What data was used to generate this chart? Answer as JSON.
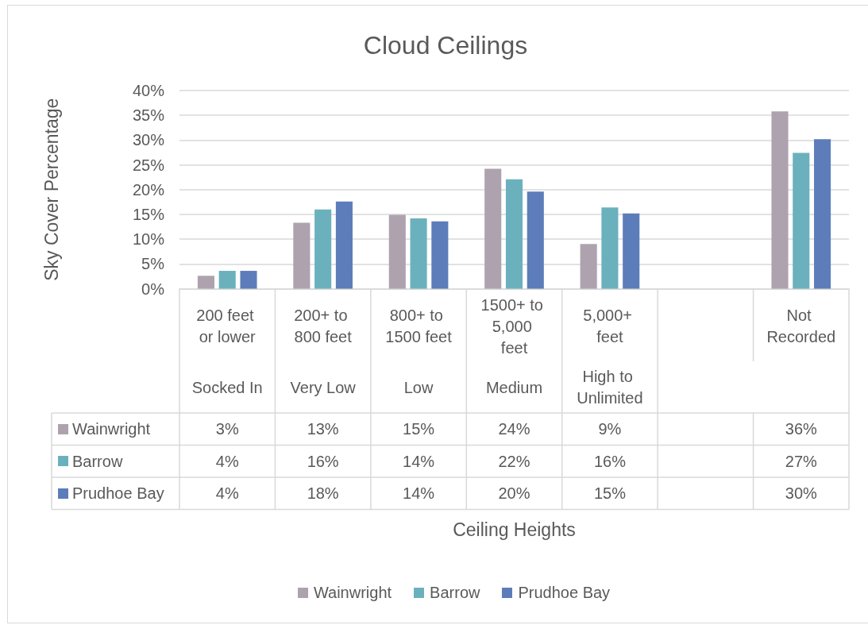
{
  "chart_data": {
    "type": "bar",
    "title": "Cloud Ceilings",
    "ylabel": "Sky Cover Percentage",
    "categories": [
      "200 feet or lower",
      "200+ to 800 feet",
      "800+ to 1500 feet",
      "1500+ to 5,000 feet",
      "5,000+ feet",
      null,
      "Not Recorded"
    ],
    "annotations": [
      "Socked In",
      "Very Low",
      "Low",
      "Medium",
      "High to Unlimited",
      "Ceiling Heights"
    ],
    "series": [
      {
        "name": "Wainwright",
        "color": "#aea2af",
        "values": [
          2.6,
          13.3,
          14.9,
          24.2,
          9.0,
          null,
          35.8
        ],
        "value_labels": [
          "3%",
          "13%",
          "15%",
          "24%",
          "9%",
          null,
          "36%"
        ]
      },
      {
        "name": "Barrow",
        "color": "#6bb1bd",
        "values": [
          3.6,
          16.0,
          14.2,
          22.1,
          16.4,
          null,
          27.4
        ],
        "value_labels": [
          "4%",
          "16%",
          "14%",
          "22%",
          "16%",
          null,
          "27%"
        ]
      },
      {
        "name": "Prudhoe Bay",
        "color": "#5d7dba",
        "values": [
          3.6,
          17.6,
          13.6,
          19.6,
          15.2,
          null,
          30.2
        ],
        "value_labels": [
          "4%",
          "18%",
          "14%",
          "20%",
          "15%",
          null,
          "30%"
        ]
      }
    ],
    "ylim": [
      0,
      40
    ],
    "yticks": [
      {
        "value": 0,
        "label": "0%"
      },
      {
        "value": 5,
        "label": "5%"
      },
      {
        "value": 10,
        "label": "10%"
      },
      {
        "value": 15,
        "label": "15%"
      },
      {
        "value": 20,
        "label": "20%"
      },
      {
        "value": 25,
        "label": "25%"
      },
      {
        "value": 30,
        "label": "30%"
      },
      {
        "value": 35,
        "label": "35%"
      },
      {
        "value": 40,
        "label": "40%"
      }
    ],
    "grid": "y",
    "legend": "bottom"
  }
}
